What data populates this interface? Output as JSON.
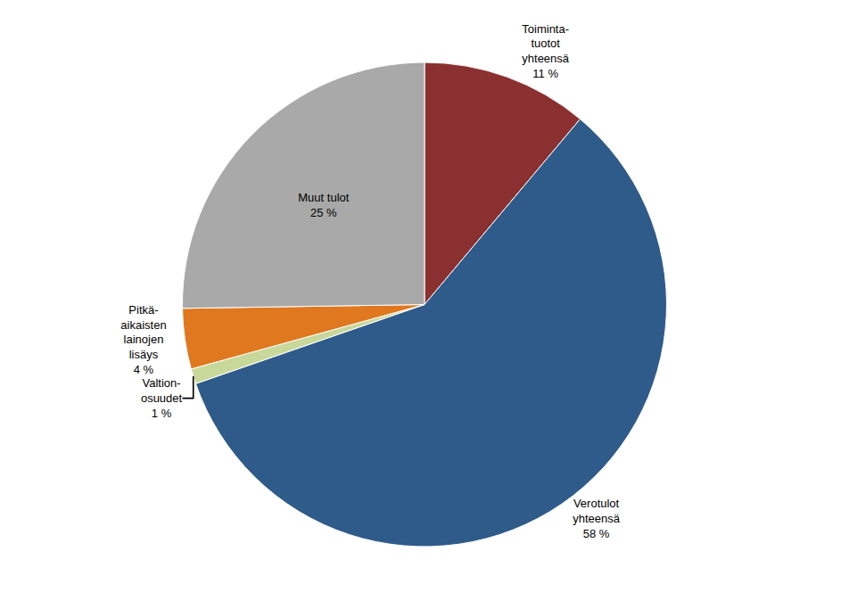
{
  "chart_data": {
    "type": "pie",
    "categories": [
      "Toiminta-\ntuotot\nyhteensä\n11 %",
      "Verotulot\nyhteensä\n58 %",
      "Valtion-\nosuudet\n1 %",
      "Pitkä-\naikaisten\nlainojen\nlisäys\n4 %",
      "Muut tulot\n25 %"
    ],
    "values": [
      11,
      58,
      1,
      4,
      25
    ],
    "colors": [
      "#8B3030",
      "#2E5B8A",
      "#C8D89A",
      "#E07820",
      "#A9A9A9"
    ]
  }
}
